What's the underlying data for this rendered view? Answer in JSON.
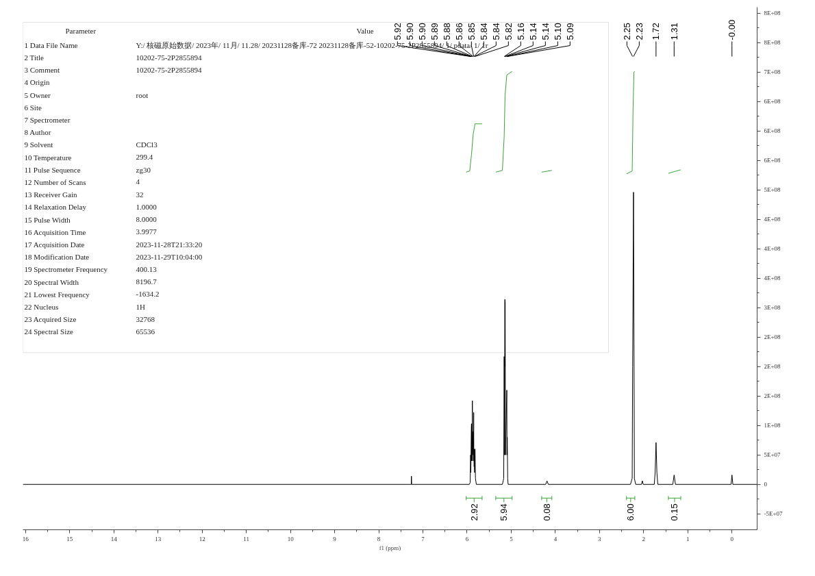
{
  "chart_data": {
    "type": "line",
    "xlabel": "f1 (ppm)",
    "xlim": [
      16.06,
      -0.57
    ],
    "xticks": [
      16,
      15,
      14,
      13,
      12,
      11,
      10,
      9,
      8,
      7,
      6,
      5,
      4,
      3,
      2,
      1,
      0
    ],
    "ylim": [
      -77000000,
      810000000
    ],
    "yticks": [
      {
        "value": -50000000,
        "label": "-5E+07"
      },
      {
        "value": 0,
        "label": "0"
      },
      {
        "value": 50000000,
        "label": "5E+07"
      },
      {
        "value": 100000000,
        "label": "1E+08"
      },
      {
        "value": 150000000,
        "label": "2E+08"
      },
      {
        "value": 200000000,
        "label": "2E+08"
      },
      {
        "value": 250000000,
        "label": "2E+08"
      },
      {
        "value": 300000000,
        "label": "3E+08"
      },
      {
        "value": 350000000,
        "label": "4E+08"
      },
      {
        "value": 400000000,
        "label": "4E+08"
      },
      {
        "value": 450000000,
        "label": "4E+08"
      },
      {
        "value": 500000000,
        "label": "5E+08"
      },
      {
        "value": 550000000,
        "label": "6E+08"
      },
      {
        "value": 600000000,
        "label": "6E+08"
      },
      {
        "value": 650000000,
        "label": "6E+08"
      },
      {
        "value": 700000000,
        "label": "7E+08"
      },
      {
        "value": 750000000,
        "label": "8E+08"
      },
      {
        "value": 800000000,
        "label": "8E+08"
      }
    ],
    "grid": false,
    "series": [
      {
        "color": "#000000",
        "x": [
          16.06,
          7.3,
          7.265,
          7.26,
          7.255,
          5.95,
          5.93,
          5.92,
          5.915,
          5.905,
          5.9,
          5.895,
          5.89,
          5.885,
          5.88,
          5.875,
          5.86,
          5.855,
          5.85,
          5.847,
          5.843,
          5.84,
          5.838,
          5.83,
          5.82,
          5.81,
          5.79,
          5.2,
          5.17,
          5.16,
          5.15,
          5.143,
          5.14,
          5.138,
          5.13,
          5.1,
          5.095,
          5.09,
          5.08,
          5.07,
          4.22,
          4.19,
          4.16,
          2.3,
          2.26,
          2.25,
          2.23,
          2.21,
          2.18,
          2.05,
          2.03,
          2.01,
          1.76,
          1.74,
          1.72,
          1.7,
          1.68,
          1.34,
          1.31,
          1.28,
          0.02,
          0.0,
          -0.02,
          -0.57
        ],
        "values": [
          0,
          0,
          0,
          14000000,
          0,
          0,
          3000000,
          50000000,
          20000000,
          90000000,
          103000000,
          40000000,
          80000000,
          40000000,
          142000000,
          50000000,
          90000000,
          40000000,
          122000000,
          40000000,
          60000000,
          30000000,
          50000000,
          20000000,
          60000000,
          10000000,
          0,
          0,
          10000000,
          217000000,
          50000000,
          314000000,
          200000000,
          310000000,
          50000000,
          160000000,
          50000000,
          80000000,
          10000000,
          0,
          0,
          6000000,
          0,
          0,
          10000000,
          200000000,
          496000000,
          10000000,
          0,
          0,
          6000000,
          0,
          0,
          20000000,
          71000000,
          20000000,
          0,
          0,
          16000000,
          0,
          0,
          16000000,
          0,
          0
        ]
      },
      {
        "color": "#3aa335",
        "x": [
          6.02,
          5.94,
          5.9,
          5.86,
          5.82,
          5.66
        ],
        "values": [
          530000000,
          532000000,
          560000000,
          595000000,
          612000000,
          612000000
        ]
      },
      {
        "color": "#3aa335",
        "x": [
          5.35,
          5.2,
          5.16,
          5.14,
          5.1,
          4.98
        ],
        "values": [
          530000000,
          533000000,
          590000000,
          660000000,
          695000000,
          701000000
        ]
      },
      {
        "color": "#3aa335",
        "x": [
          4.31,
          4.08
        ],
        "values": [
          530000000,
          533000000
        ]
      },
      {
        "color": "#3aa335",
        "x": [
          2.39,
          2.26,
          2.24,
          2.22,
          2.2
        ],
        "values": [
          527000000,
          532000000,
          640000000,
          700000000,
          701000000
        ]
      },
      {
        "color": "#3aa335",
        "x": [
          1.44,
          1.16
        ],
        "values": [
          528000000,
          534000000
        ]
      }
    ],
    "annotations": [
      "Parameter\tValue",
      "1 Data File Name\tY:/ 核磁原始数据/ 2023年/ 11月/ 11.28/ 20231128备库-72 20231128备库-52-10202-75-2P2855894/ 1/ pdata/ 1/ 1r",
      "2 Title\t10202-75-2P2855894",
      "3 Comment\t10202-75-2P2855894",
      "4 Origin",
      "5 Owner\troot",
      "6 Site",
      "7 Spectrometer",
      "8 Author",
      "9 Solvent\tCDCl3",
      "10 Temperature\t299.4",
      "11 Pulse Sequence\tzg30",
      "12 Number of Scans\t4",
      "13 Receiver Gain\t32",
      "14 Relaxation Delay\t1.0000",
      "15 Pulse Width\t8.0000",
      "16 Acquisition Time\t3.9977",
      "17 Acquisition Date\t2023-11-28T21:33:20",
      "18 Modification Date\t2023-11-29T10:04:00",
      "19 Spectrometer Frequency\t400.13",
      "20 Spectral Width\t8196.7",
      "21 Lowest Frequency\t-1634.2",
      "22 Nucleus\t1H",
      "23 Acquired Size\t32768",
      "24 Spectral Size\t65536",
      {
        "text": "5.92",
        "x": 5.92
      },
      {
        "text": "5.90",
        "x": 5.905
      },
      {
        "text": "5.90",
        "x": 5.9
      },
      {
        "text": "5.89",
        "x": 5.89
      },
      {
        "text": "5.88",
        "x": 5.88
      },
      {
        "text": "5.86",
        "x": 5.86
      },
      {
        "text": "5.85",
        "x": 5.85
      },
      {
        "text": "5.84",
        "x": 5.843
      },
      {
        "text": "5.84",
        "x": 5.838
      },
      {
        "text": "5.82",
        "x": 5.82
      },
      {
        "text": "5.16",
        "x": 5.16
      },
      {
        "text": "5.14",
        "x": 5.143
      },
      {
        "text": "5.14",
        "x": 5.138
      },
      {
        "text": "5.10",
        "x": 5.1
      },
      {
        "text": "5.09",
        "x": 5.09
      },
      {
        "text": "2.25",
        "x": 2.25
      },
      {
        "text": "2.23",
        "x": 2.23
      },
      {
        "text": "1.72",
        "x": 1.72
      },
      {
        "text": "1.31",
        "x": 1.31
      },
      {
        "text": "-0.00",
        "x": 0.0
      },
      "2.92",
      "5.94",
      "0.08",
      "6.00",
      "0.15"
    ]
  }
}
